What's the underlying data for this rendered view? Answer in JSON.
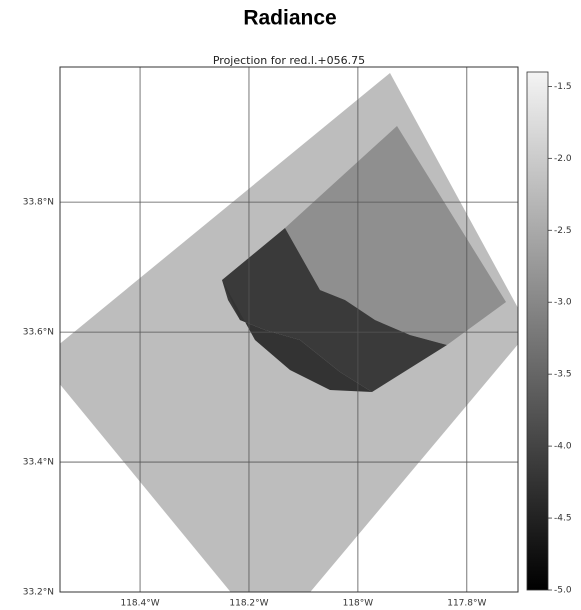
{
  "chart_data": {
    "type": "map",
    "title": "Radiance",
    "subtitle": "Projection for red.l.+056.75",
    "xlim": [
      -118.547,
      -117.706
    ],
    "ylim": [
      33.2,
      34.008
    ],
    "xticks": [
      {
        "value": -118.4,
        "label": "118.4°W"
      },
      {
        "value": -118.2,
        "label": "118.2°W"
      },
      {
        "value": -118.0,
        "label": "118°W"
      },
      {
        "value": -117.8,
        "label": "117.8°W"
      }
    ],
    "yticks": [
      {
        "value": 33.2,
        "label": "33.2°N"
      },
      {
        "value": 33.4,
        "label": "33.4°N"
      },
      {
        "value": 33.6,
        "label": "33.6°N"
      },
      {
        "value": 33.8,
        "label": "33.8°N"
      }
    ],
    "grid": true,
    "colorbar": {
      "lim": [
        -5.0,
        -1.4
      ],
      "ticks": [
        -1.5,
        {
          "value": -2.0,
          "label": "-2.0"
        },
        -2.5,
        {
          "value": -3.0,
          "label": "-3.0"
        },
        -3.5,
        {
          "value": -4.0,
          "label": "-4.0"
        },
        -4.5,
        {
          "value": -5.0,
          "label": "-5.0"
        }
      ]
    }
  }
}
